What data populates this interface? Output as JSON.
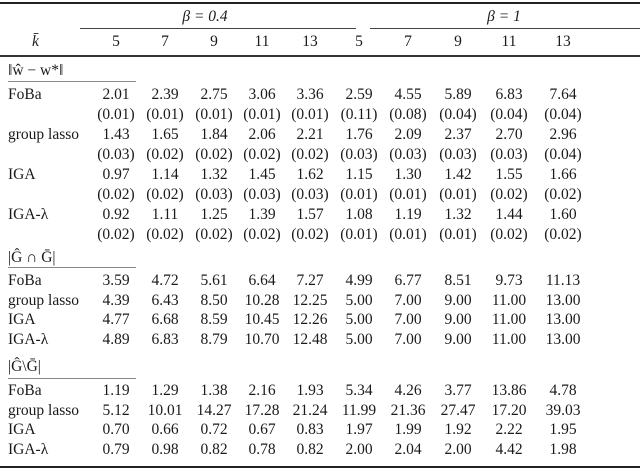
{
  "header": {
    "beta_groups": [
      {
        "label": "β = 0.4",
        "k_values": [
          "5",
          "7",
          "9",
          "11",
          "13"
        ]
      },
      {
        "label": "β = 1",
        "k_values": [
          "5",
          "7",
          "9",
          "11",
          "13"
        ]
      }
    ],
    "k_label": "k̄"
  },
  "sections": [
    {
      "label": "‖ŵ − w*‖",
      "rows": [
        {
          "method": "FoBa",
          "values": [
            "2.01",
            "2.39",
            "2.75",
            "3.06",
            "3.36",
            "2.59",
            "4.55",
            "5.89",
            "6.83",
            "7.64"
          ],
          "se": [
            "(0.01)",
            "(0.01)",
            "(0.01)",
            "(0.01)",
            "(0.01)",
            "(0.11)",
            "(0.08)",
            "(0.04)",
            "(0.04)",
            "(0.04)"
          ]
        },
        {
          "method": "group lasso",
          "values": [
            "1.43",
            "1.65",
            "1.84",
            "2.06",
            "2.21",
            "1.76",
            "2.09",
            "2.37",
            "2.70",
            "2.96"
          ],
          "se": [
            "(0.03)",
            "(0.02)",
            "(0.02)",
            "(0.02)",
            "(0.02)",
            "(0.03)",
            "(0.03)",
            "(0.03)",
            "(0.03)",
            "(0.04)"
          ]
        },
        {
          "method": "IGA",
          "values": [
            "0.97",
            "1.14",
            "1.32",
            "1.45",
            "1.62",
            "1.15",
            "1.30",
            "1.42",
            "1.55",
            "1.66"
          ],
          "se": [
            "(0.02)",
            "(0.02)",
            "(0.03)",
            "(0.03)",
            "(0.03)",
            "(0.01)",
            "(0.01)",
            "(0.01)",
            "(0.02)",
            "(0.02)"
          ]
        },
        {
          "method": "IGA-λ",
          "values": [
            "0.92",
            "1.11",
            "1.25",
            "1.39",
            "1.57",
            "1.08",
            "1.19",
            "1.32",
            "1.44",
            "1.60"
          ],
          "se": [
            "(0.02)",
            "(0.02)",
            "(0.02)",
            "(0.02)",
            "(0.02)",
            "(0.01)",
            "(0.01)",
            "(0.01)",
            "(0.02)",
            "(0.02)"
          ]
        }
      ]
    },
    {
      "label": "|Ĝ ∩ Ḡ|",
      "rows": [
        {
          "method": "FoBa",
          "values": [
            "3.59",
            "4.72",
            "5.61",
            "6.64",
            "7.27",
            "4.99",
            "6.77",
            "8.51",
            "9.73",
            "11.13"
          ]
        },
        {
          "method": "group lasso",
          "values": [
            "4.39",
            "6.43",
            "8.50",
            "10.28",
            "12.25",
            "5.00",
            "7.00",
            "9.00",
            "11.00",
            "13.00"
          ]
        },
        {
          "method": "IGA",
          "values": [
            "4.77",
            "6.68",
            "8.59",
            "10.45",
            "12.26",
            "5.00",
            "7.00",
            "9.00",
            "11.00",
            "13.00"
          ]
        },
        {
          "method": "IGA-λ",
          "values": [
            "4.89",
            "6.83",
            "8.79",
            "10.70",
            "12.48",
            "5.00",
            "7.00",
            "9.00",
            "11.00",
            "13.00"
          ]
        }
      ]
    },
    {
      "label": "|Ĝ\\Ḡ|",
      "rows": [
        {
          "method": "FoBa",
          "values": [
            "1.19",
            "1.29",
            "1.38",
            "2.16",
            "1.93",
            "5.34",
            "4.26",
            "3.77",
            "13.86",
            "4.78"
          ]
        },
        {
          "method": "group lasso",
          "values": [
            "5.12",
            "10.01",
            "14.27",
            "17.28",
            "21.24",
            "11.99",
            "21.36",
            "27.47",
            "17.20",
            "39.03"
          ]
        },
        {
          "method": "IGA",
          "values": [
            "0.70",
            "0.66",
            "0.72",
            "0.67",
            "0.83",
            "1.97",
            "1.99",
            "1.92",
            "2.22",
            "1.95"
          ]
        },
        {
          "method": "IGA-λ",
          "values": [
            "0.79",
            "0.98",
            "0.82",
            "0.78",
            "0.82",
            "2.00",
            "2.04",
            "2.00",
            "4.42",
            "1.98"
          ]
        }
      ]
    }
  ]
}
